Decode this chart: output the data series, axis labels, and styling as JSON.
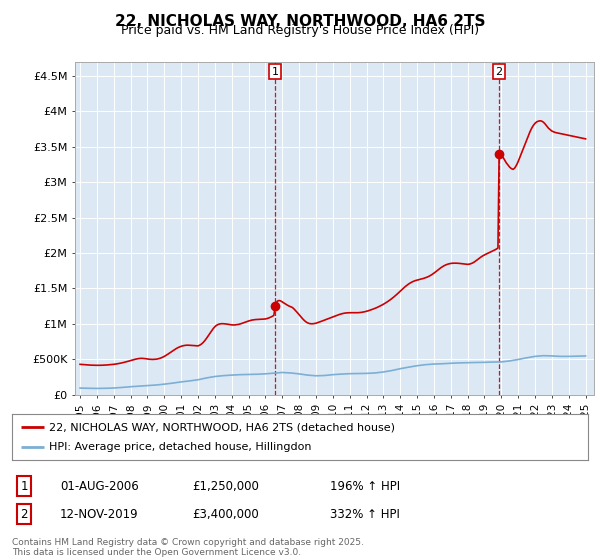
{
  "title": "22, NICHOLAS WAY, NORTHWOOD, HA6 2TS",
  "subtitle": "Price paid vs. HM Land Registry's House Price Index (HPI)",
  "yticks": [
    0,
    500000,
    1000000,
    1500000,
    2000000,
    2500000,
    3000000,
    3500000,
    4000000,
    4500000
  ],
  "ytick_labels": [
    "£0",
    "£500K",
    "£1M",
    "£1.5M",
    "£2M",
    "£2.5M",
    "£3M",
    "£3.5M",
    "£4M",
    "£4.5M"
  ],
  "ylim": [
    0,
    4700000
  ],
  "xlim_start": 1994.7,
  "xlim_end": 2025.5,
  "red_line_color": "#cc0000",
  "blue_line_color": "#7bafd4",
  "plot_bg_color": "#dce9f5",
  "background_color": "#ffffff",
  "grid_color": "#ffffff",
  "marker1_year": 2006.58,
  "marker1_value": 1250000,
  "marker2_year": 2019.87,
  "marker2_value": 3400000,
  "legend_red_label": "22, NICHOLAS WAY, NORTHWOOD, HA6 2TS (detached house)",
  "legend_blue_label": "HPI: Average price, detached house, Hillingdon",
  "note1_label": "1",
  "note1_date": "01-AUG-2006",
  "note1_price": "£1,250,000",
  "note1_hpi": "196% ↑ HPI",
  "note2_label": "2",
  "note2_date": "12-NOV-2019",
  "note2_price": "£3,400,000",
  "note2_hpi": "332% ↑ HPI",
  "footer": "Contains HM Land Registry data © Crown copyright and database right 2025.\nThis data is licensed under the Open Government Licence v3.0.",
  "red_hpi_data": [
    [
      1995.0,
      430000
    ],
    [
      1995.1,
      428000
    ],
    [
      1995.2,
      425000
    ],
    [
      1995.3,
      423000
    ],
    [
      1995.4,
      422000
    ],
    [
      1995.5,
      420000
    ],
    [
      1995.6,
      419000
    ],
    [
      1995.7,
      418000
    ],
    [
      1995.8,
      418000
    ],
    [
      1995.9,
      417000
    ],
    [
      1996.0,
      416000
    ],
    [
      1996.1,
      416000
    ],
    [
      1996.2,
      416000
    ],
    [
      1996.3,
      417000
    ],
    [
      1996.4,
      418000
    ],
    [
      1996.5,
      419000
    ],
    [
      1996.6,
      421000
    ],
    [
      1996.7,
      423000
    ],
    [
      1996.8,
      425000
    ],
    [
      1996.9,
      427000
    ],
    [
      1997.0,
      430000
    ],
    [
      1997.1,
      433000
    ],
    [
      1997.2,
      437000
    ],
    [
      1997.3,
      441000
    ],
    [
      1997.4,
      446000
    ],
    [
      1997.5,
      451000
    ],
    [
      1997.6,
      457000
    ],
    [
      1997.7,
      463000
    ],
    [
      1997.8,
      469000
    ],
    [
      1997.9,
      476000
    ],
    [
      1998.0,
      483000
    ],
    [
      1998.1,
      490000
    ],
    [
      1998.2,
      497000
    ],
    [
      1998.3,
      503000
    ],
    [
      1998.4,
      508000
    ],
    [
      1998.5,
      512000
    ],
    [
      1998.6,
      514000
    ],
    [
      1998.7,
      514000
    ],
    [
      1998.8,
      512000
    ],
    [
      1998.9,
      509000
    ],
    [
      1999.0,
      505000
    ],
    [
      1999.1,
      502000
    ],
    [
      1999.2,
      500000
    ],
    [
      1999.3,
      499000
    ],
    [
      1999.4,
      500000
    ],
    [
      1999.5,
      502000
    ],
    [
      1999.6,
      506000
    ],
    [
      1999.7,
      512000
    ],
    [
      1999.8,
      520000
    ],
    [
      1999.9,
      530000
    ],
    [
      2000.0,
      542000
    ],
    [
      2000.1,
      556000
    ],
    [
      2000.2,
      571000
    ],
    [
      2000.3,
      587000
    ],
    [
      2000.4,
      604000
    ],
    [
      2000.5,
      620000
    ],
    [
      2000.6,
      636000
    ],
    [
      2000.7,
      651000
    ],
    [
      2000.8,
      664000
    ],
    [
      2000.9,
      675000
    ],
    [
      2001.0,
      684000
    ],
    [
      2001.1,
      691000
    ],
    [
      2001.2,
      696000
    ],
    [
      2001.3,
      699000
    ],
    [
      2001.4,
      700000
    ],
    [
      2001.5,
      699000
    ],
    [
      2001.6,
      697000
    ],
    [
      2001.7,
      695000
    ],
    [
      2001.8,
      693000
    ],
    [
      2001.9,
      691000
    ],
    [
      2002.0,
      690000
    ],
    [
      2002.1,
      700000
    ],
    [
      2002.2,
      715000
    ],
    [
      2002.3,
      736000
    ],
    [
      2002.4,
      763000
    ],
    [
      2002.5,
      795000
    ],
    [
      2002.6,
      830000
    ],
    [
      2002.7,
      866000
    ],
    [
      2002.8,
      901000
    ],
    [
      2002.9,
      933000
    ],
    [
      2003.0,
      960000
    ],
    [
      2003.1,
      980000
    ],
    [
      2003.2,
      993000
    ],
    [
      2003.3,
      1000000
    ],
    [
      2003.4,
      1003000
    ],
    [
      2003.5,
      1003000
    ],
    [
      2003.6,
      1001000
    ],
    [
      2003.7,
      998000
    ],
    [
      2003.8,
      994000
    ],
    [
      2003.9,
      990000
    ],
    [
      2004.0,
      986000
    ],
    [
      2004.1,
      985000
    ],
    [
      2004.2,
      986000
    ],
    [
      2004.3,
      989000
    ],
    [
      2004.4,
      993000
    ],
    [
      2004.5,
      999000
    ],
    [
      2004.6,
      1007000
    ],
    [
      2004.7,
      1015000
    ],
    [
      2004.8,
      1024000
    ],
    [
      2004.9,
      1033000
    ],
    [
      2005.0,
      1041000
    ],
    [
      2005.1,
      1048000
    ],
    [
      2005.2,
      1054000
    ],
    [
      2005.3,
      1058000
    ],
    [
      2005.4,
      1061000
    ],
    [
      2005.5,
      1063000
    ],
    [
      2005.6,
      1064000
    ],
    [
      2005.7,
      1065000
    ],
    [
      2005.8,
      1066000
    ],
    [
      2005.9,
      1068000
    ],
    [
      2006.0,
      1070000
    ],
    [
      2006.1,
      1076000
    ],
    [
      2006.2,
      1084000
    ],
    [
      2006.3,
      1094000
    ],
    [
      2006.4,
      1106000
    ],
    [
      2006.5,
      1120000
    ],
    [
      2006.58,
      1250000
    ],
    [
      2006.7,
      1320000
    ],
    [
      2006.8,
      1330000
    ],
    [
      2006.9,
      1325000
    ],
    [
      2007.0,
      1310000
    ],
    [
      2007.1,
      1295000
    ],
    [
      2007.2,
      1280000
    ],
    [
      2007.3,
      1265000
    ],
    [
      2007.4,
      1252000
    ],
    [
      2007.5,
      1242000
    ],
    [
      2007.6,
      1232000
    ],
    [
      2007.7,
      1210000
    ],
    [
      2007.8,
      1185000
    ],
    [
      2007.9,
      1158000
    ],
    [
      2008.0,
      1130000
    ],
    [
      2008.1,
      1102000
    ],
    [
      2008.2,
      1075000
    ],
    [
      2008.3,
      1050000
    ],
    [
      2008.4,
      1030000
    ],
    [
      2008.5,
      1015000
    ],
    [
      2008.6,
      1006000
    ],
    [
      2008.7,
      1002000
    ],
    [
      2008.8,
      1002000
    ],
    [
      2008.9,
      1005000
    ],
    [
      2009.0,
      1010000
    ],
    [
      2009.1,
      1018000
    ],
    [
      2009.2,
      1026000
    ],
    [
      2009.3,
      1035000
    ],
    [
      2009.4,
      1044000
    ],
    [
      2009.5,
      1053000
    ],
    [
      2009.6,
      1062000
    ],
    [
      2009.7,
      1071000
    ],
    [
      2009.8,
      1080000
    ],
    [
      2009.9,
      1089000
    ],
    [
      2010.0,
      1099000
    ],
    [
      2010.1,
      1108000
    ],
    [
      2010.2,
      1117000
    ],
    [
      2010.3,
      1126000
    ],
    [
      2010.4,
      1134000
    ],
    [
      2010.5,
      1141000
    ],
    [
      2010.6,
      1147000
    ],
    [
      2010.7,
      1152000
    ],
    [
      2010.8,
      1155000
    ],
    [
      2010.9,
      1157000
    ],
    [
      2011.0,
      1158000
    ],
    [
      2011.1,
      1158000
    ],
    [
      2011.2,
      1158000
    ],
    [
      2011.3,
      1158000
    ],
    [
      2011.4,
      1158000
    ],
    [
      2011.5,
      1158000
    ],
    [
      2011.6,
      1160000
    ],
    [
      2011.7,
      1163000
    ],
    [
      2011.8,
      1167000
    ],
    [
      2011.9,
      1172000
    ],
    [
      2012.0,
      1178000
    ],
    [
      2012.1,
      1185000
    ],
    [
      2012.2,
      1193000
    ],
    [
      2012.3,
      1201000
    ],
    [
      2012.4,
      1210000
    ],
    [
      2012.5,
      1219000
    ],
    [
      2012.6,
      1229000
    ],
    [
      2012.7,
      1240000
    ],
    [
      2012.8,
      1252000
    ],
    [
      2012.9,
      1264000
    ],
    [
      2013.0,
      1277000
    ],
    [
      2013.1,
      1291000
    ],
    [
      2013.2,
      1306000
    ],
    [
      2013.3,
      1322000
    ],
    [
      2013.4,
      1339000
    ],
    [
      2013.5,
      1357000
    ],
    [
      2013.6,
      1376000
    ],
    [
      2013.7,
      1396000
    ],
    [
      2013.8,
      1417000
    ],
    [
      2013.9,
      1439000
    ],
    [
      2014.0,
      1462000
    ],
    [
      2014.1,
      1484000
    ],
    [
      2014.2,
      1506000
    ],
    [
      2014.3,
      1527000
    ],
    [
      2014.4,
      1546000
    ],
    [
      2014.5,
      1563000
    ],
    [
      2014.6,
      1578000
    ],
    [
      2014.7,
      1591000
    ],
    [
      2014.8,
      1602000
    ],
    [
      2014.9,
      1611000
    ],
    [
      2015.0,
      1618000
    ],
    [
      2015.1,
      1624000
    ],
    [
      2015.2,
      1630000
    ],
    [
      2015.3,
      1636000
    ],
    [
      2015.4,
      1643000
    ],
    [
      2015.5,
      1651000
    ],
    [
      2015.6,
      1660000
    ],
    [
      2015.7,
      1671000
    ],
    [
      2015.8,
      1684000
    ],
    [
      2015.9,
      1699000
    ],
    [
      2016.0,
      1716000
    ],
    [
      2016.1,
      1734000
    ],
    [
      2016.2,
      1753000
    ],
    [
      2016.3,
      1772000
    ],
    [
      2016.4,
      1790000
    ],
    [
      2016.5,
      1806000
    ],
    [
      2016.6,
      1820000
    ],
    [
      2016.7,
      1832000
    ],
    [
      2016.8,
      1841000
    ],
    [
      2016.9,
      1848000
    ],
    [
      2017.0,
      1853000
    ],
    [
      2017.1,
      1856000
    ],
    [
      2017.2,
      1857000
    ],
    [
      2017.3,
      1857000
    ],
    [
      2017.4,
      1856000
    ],
    [
      2017.5,
      1854000
    ],
    [
      2017.6,
      1851000
    ],
    [
      2017.7,
      1848000
    ],
    [
      2017.8,
      1845000
    ],
    [
      2017.9,
      1842000
    ],
    [
      2018.0,
      1840000
    ],
    [
      2018.1,
      1843000
    ],
    [
      2018.2,
      1850000
    ],
    [
      2018.3,
      1860000
    ],
    [
      2018.4,
      1874000
    ],
    [
      2018.5,
      1891000
    ],
    [
      2018.6,
      1909000
    ],
    [
      2018.7,
      1928000
    ],
    [
      2018.8,
      1945000
    ],
    [
      2018.9,
      1960000
    ],
    [
      2019.0,
      1973000
    ],
    [
      2019.1,
      1985000
    ],
    [
      2019.2,
      1997000
    ],
    [
      2019.3,
      2008000
    ],
    [
      2019.4,
      2019000
    ],
    [
      2019.5,
      2030000
    ],
    [
      2019.6,
      2042000
    ],
    [
      2019.7,
      2055000
    ],
    [
      2019.8,
      2070000
    ],
    [
      2019.87,
      3400000
    ],
    [
      2020.0,
      3380000
    ],
    [
      2020.1,
      3350000
    ],
    [
      2020.2,
      3310000
    ],
    [
      2020.3,
      3270000
    ],
    [
      2020.4,
      3240000
    ],
    [
      2020.5,
      3210000
    ],
    [
      2020.6,
      3190000
    ],
    [
      2020.7,
      3180000
    ],
    [
      2020.8,
      3200000
    ],
    [
      2020.9,
      3240000
    ],
    [
      2021.0,
      3290000
    ],
    [
      2021.1,
      3350000
    ],
    [
      2021.2,
      3410000
    ],
    [
      2021.3,
      3470000
    ],
    [
      2021.4,
      3530000
    ],
    [
      2021.5,
      3590000
    ],
    [
      2021.6,
      3650000
    ],
    [
      2021.7,
      3710000
    ],
    [
      2021.8,
      3760000
    ],
    [
      2021.9,
      3800000
    ],
    [
      2022.0,
      3830000
    ],
    [
      2022.1,
      3850000
    ],
    [
      2022.2,
      3860000
    ],
    [
      2022.3,
      3865000
    ],
    [
      2022.4,
      3860000
    ],
    [
      2022.5,
      3845000
    ],
    [
      2022.6,
      3820000
    ],
    [
      2022.7,
      3790000
    ],
    [
      2022.8,
      3760000
    ],
    [
      2022.9,
      3740000
    ],
    [
      2023.0,
      3720000
    ],
    [
      2023.1,
      3710000
    ],
    [
      2023.2,
      3700000
    ],
    [
      2023.3,
      3695000
    ],
    [
      2023.4,
      3690000
    ],
    [
      2023.5,
      3685000
    ],
    [
      2023.6,
      3680000
    ],
    [
      2023.7,
      3675000
    ],
    [
      2023.8,
      3670000
    ],
    [
      2023.9,
      3665000
    ],
    [
      2024.0,
      3660000
    ],
    [
      2024.1,
      3655000
    ],
    [
      2024.2,
      3650000
    ],
    [
      2024.3,
      3645000
    ],
    [
      2024.4,
      3640000
    ],
    [
      2024.5,
      3635000
    ],
    [
      2024.6,
      3630000
    ],
    [
      2024.7,
      3625000
    ],
    [
      2024.8,
      3620000
    ],
    [
      2024.9,
      3615000
    ],
    [
      2025.0,
      3610000
    ]
  ],
  "blue_hpi_data": [
    [
      1995.0,
      95000
    ],
    [
      1995.5,
      92000
    ],
    [
      1996.0,
      90000
    ],
    [
      1996.5,
      92000
    ],
    [
      1997.0,
      96000
    ],
    [
      1997.5,
      104000
    ],
    [
      1998.0,
      114000
    ],
    [
      1998.5,
      122000
    ],
    [
      1999.0,
      130000
    ],
    [
      1999.5,
      138000
    ],
    [
      2000.0,
      150000
    ],
    [
      2000.5,
      165000
    ],
    [
      2001.0,
      182000
    ],
    [
      2001.5,
      196000
    ],
    [
      2002.0,
      212000
    ],
    [
      2002.5,
      238000
    ],
    [
      2003.0,
      258000
    ],
    [
      2003.5,
      270000
    ],
    [
      2004.0,
      278000
    ],
    [
      2004.5,
      284000
    ],
    [
      2005.0,
      287000
    ],
    [
      2005.5,
      290000
    ],
    [
      2006.0,
      296000
    ],
    [
      2006.5,
      305000
    ],
    [
      2007.0,
      315000
    ],
    [
      2007.5,
      308000
    ],
    [
      2008.0,
      295000
    ],
    [
      2008.5,
      278000
    ],
    [
      2009.0,
      268000
    ],
    [
      2009.5,
      272000
    ],
    [
      2010.0,
      284000
    ],
    [
      2010.5,
      292000
    ],
    [
      2011.0,
      298000
    ],
    [
      2011.5,
      300000
    ],
    [
      2012.0,
      302000
    ],
    [
      2012.5,
      308000
    ],
    [
      2013.0,
      322000
    ],
    [
      2013.5,
      342000
    ],
    [
      2014.0,
      368000
    ],
    [
      2014.5,
      390000
    ],
    [
      2015.0,
      410000
    ],
    [
      2015.5,
      425000
    ],
    [
      2016.0,
      434000
    ],
    [
      2016.5,
      438000
    ],
    [
      2017.0,
      445000
    ],
    [
      2017.5,
      450000
    ],
    [
      2018.0,
      453000
    ],
    [
      2018.5,
      456000
    ],
    [
      2019.0,
      458000
    ],
    [
      2019.5,
      462000
    ],
    [
      2020.0,
      464000
    ],
    [
      2020.5,
      478000
    ],
    [
      2021.0,
      498000
    ],
    [
      2021.5,
      522000
    ],
    [
      2022.0,
      542000
    ],
    [
      2022.5,
      552000
    ],
    [
      2023.0,
      548000
    ],
    [
      2023.5,
      542000
    ],
    [
      2024.0,
      542000
    ],
    [
      2024.5,
      545000
    ],
    [
      2025.0,
      548000
    ]
  ],
  "xtick_years": [
    1995,
    1996,
    1997,
    1998,
    1999,
    2000,
    2001,
    2002,
    2003,
    2004,
    2005,
    2006,
    2007,
    2008,
    2009,
    2010,
    2011,
    2012,
    2013,
    2014,
    2015,
    2016,
    2017,
    2018,
    2019,
    2020,
    2021,
    2022,
    2023,
    2024,
    2025
  ]
}
